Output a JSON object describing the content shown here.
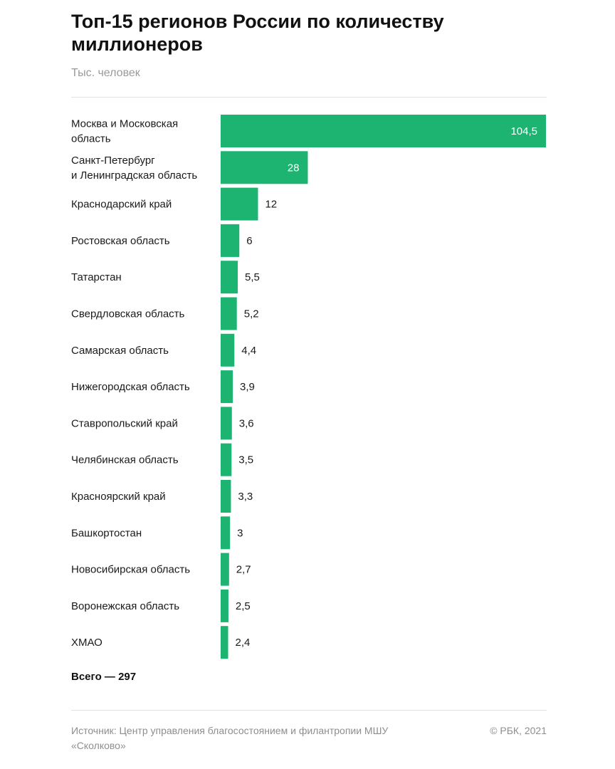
{
  "title": "Топ-15 регионов России по количеству миллионеров",
  "subtitle": "Тыс. человек",
  "total": "Всего — 297",
  "source": "Источник: Центр управления благосостоянием и филантропии МШУ «Сколково»",
  "copyright": "© РБК, 2021",
  "colors": {
    "bar": "#1db472",
    "text": "#1a1a1a",
    "muted": "#9a9a9a"
  },
  "chart_data": {
    "type": "bar",
    "orientation": "horizontal",
    "unit": "Тыс. человек",
    "xlim": [
      0,
      104.5
    ],
    "grid": false,
    "legend": "none",
    "categories": [
      [
        "Москва и Московская",
        "область"
      ],
      [
        "Санкт-Петербург",
        "и Ленинградская область"
      ],
      [
        "Краснодарский край"
      ],
      [
        "Ростовская область"
      ],
      [
        "Татарстан"
      ],
      [
        "Свердловская область"
      ],
      [
        "Самарская область"
      ],
      [
        "Нижегородская область"
      ],
      [
        "Ставропольский край"
      ],
      [
        "Челябинская область"
      ],
      [
        "Красноярский край"
      ],
      [
        "Башкортостан"
      ],
      [
        "Новосибирская область"
      ],
      [
        "Воронежская область"
      ],
      [
        "ХМАО"
      ]
    ],
    "values": [
      104.5,
      28,
      12,
      6,
      5.5,
      5.2,
      4.4,
      3.9,
      3.6,
      3.5,
      3.3,
      3,
      2.7,
      2.5,
      2.4
    ],
    "value_labels": [
      "104,5",
      "28",
      "12",
      "6",
      "5,5",
      "5,2",
      "4,4",
      "3,9",
      "3,6",
      "3,5",
      "3,3",
      "3",
      "2,7",
      "2,5",
      "2,4"
    ]
  }
}
